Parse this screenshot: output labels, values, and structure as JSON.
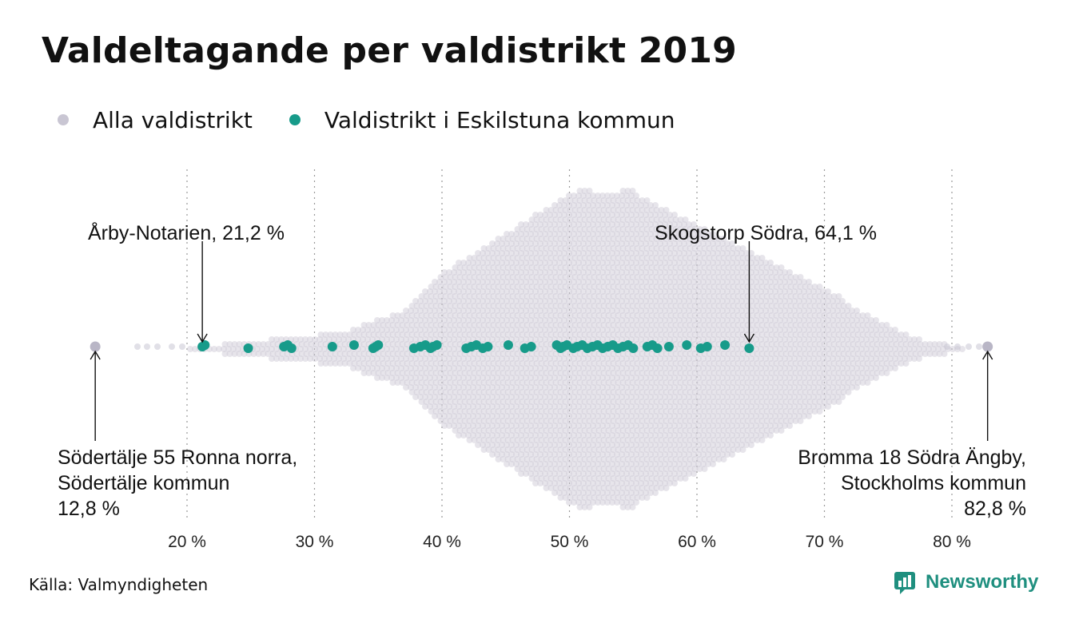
{
  "title": "Valdeltagande per valdistrikt 2019",
  "legend": [
    {
      "label": "Alla valdistrikt",
      "color": "#c9c6d3"
    },
    {
      "label": "Valdistrikt i Eskilstuna kommun",
      "color": "#179b8a"
    }
  ],
  "source": "Källa: Valmyndigheten",
  "brand": "Newsworthy",
  "chart_data": {
    "type": "scatter",
    "subtype": "beeswarm",
    "xlim": [
      11,
      87
    ],
    "x_ticks": [
      {
        "value": 20,
        "label": "20 %"
      },
      {
        "value": 30,
        "label": "30 %"
      },
      {
        "value": 40,
        "label": "40 %"
      },
      {
        "value": 50,
        "label": "50 %"
      },
      {
        "value": 60,
        "label": "60 %"
      },
      {
        "value": 70,
        "label": "70 %"
      },
      {
        "value": 80,
        "label": "80 %"
      }
    ],
    "grid": "vertical-dotted",
    "series": [
      {
        "name": "Alla valdistrikt",
        "color": "#c9c6d3",
        "distribution": "dense beeswarm, peak near 54 %",
        "min": 12.8,
        "max": 82.8
      },
      {
        "name": "Valdistrikt i Eskilstuna kommun",
        "color": "#179b8a",
        "values": [
          21.2,
          21.4,
          24.8,
          27.6,
          27.9,
          28.2,
          31.4,
          33.1,
          34.6,
          34.8,
          35.0,
          37.8,
          38.3,
          38.7,
          39.1,
          39.3,
          39.6,
          41.9,
          42.3,
          42.7,
          43.2,
          43.6,
          45.2,
          46.5,
          47.0,
          49.0,
          49.3,
          49.5,
          49.8,
          50.3,
          50.6,
          51.0,
          51.4,
          51.8,
          52.2,
          52.6,
          53.0,
          53.4,
          53.8,
          54.2,
          54.6,
          55.0,
          56.1,
          56.5,
          56.9,
          57.8,
          59.2,
          60.3,
          60.8,
          62.2,
          64.1
        ]
      }
    ],
    "annotations": [
      {
        "lines": [
          "Årby-Notarien, 21,2 %"
        ],
        "value": 21.2,
        "position": "above",
        "align": "left"
      },
      {
        "lines": [
          "Skogstorp Södra, 64,1 %"
        ],
        "value": 64.1,
        "position": "above",
        "align": "right"
      },
      {
        "lines": [
          "Södertälje 55 Ronna norra,",
          "Södertälje kommun",
          "12,8 %"
        ],
        "value": 12.8,
        "position": "below",
        "align": "left"
      },
      {
        "lines": [
          "Bromma 18 Södra Ängby,",
          "Stockholms kommun",
          "82,8 %"
        ],
        "value": 82.8,
        "position": "below",
        "align": "right"
      }
    ]
  }
}
